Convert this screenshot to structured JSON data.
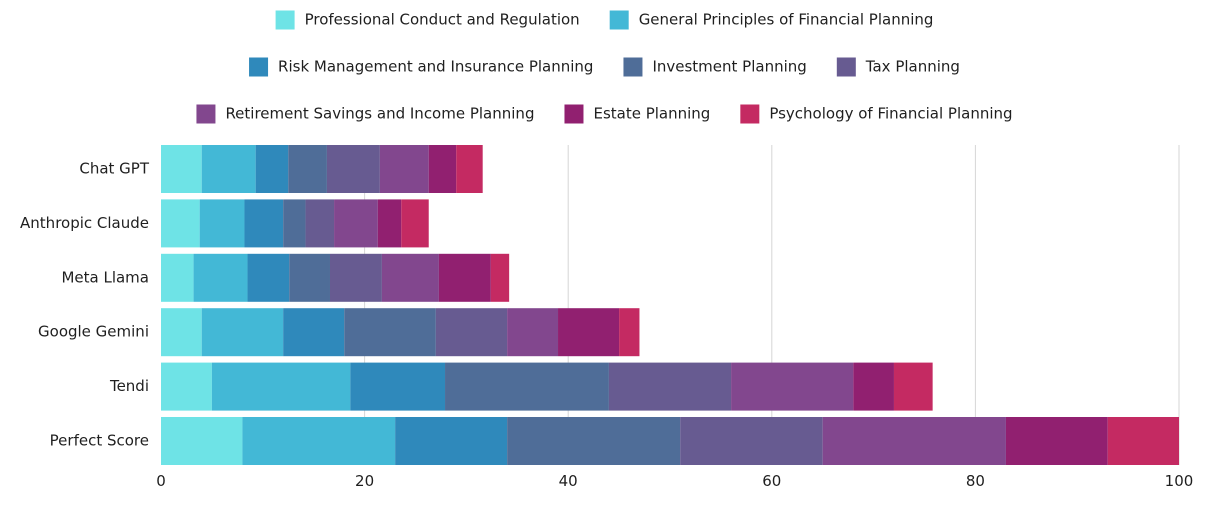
{
  "chart_data": {
    "type": "bar",
    "orientation": "horizontal",
    "stacked": true,
    "title": "",
    "xlabel": "",
    "ylabel": "",
    "xlim": [
      0,
      100
    ],
    "xticks": [
      0,
      20,
      40,
      60,
      80,
      100
    ],
    "grid": true,
    "legend_position": "top",
    "categories": [
      "Chat GPT",
      "Anthropic Claude",
      "Meta Llama",
      "Google Gemini",
      "Tendi",
      "Perfect Score"
    ],
    "series": [
      {
        "name": "Professional Conduct and Regulation",
        "color": "#6ee3e6",
        "values": [
          4,
          3.8,
          3.2,
          4,
          5,
          8
        ]
      },
      {
        "name": "General Principles of Financial Planning",
        "color": "#43b8d6",
        "values": [
          5.3,
          4.4,
          5.3,
          8,
          13.6,
          15
        ]
      },
      {
        "name": "Risk Management and Insurance Planning",
        "color": "#2f89bb",
        "values": [
          3.2,
          3.8,
          4.1,
          6,
          9.3,
          11
        ]
      },
      {
        "name": "Investment Planning",
        "color": "#4f6d98",
        "values": [
          3.8,
          2.2,
          4,
          9,
          16.1,
          17
        ]
      },
      {
        "name": "Tax Planning",
        "color": "#675b91",
        "values": [
          5.2,
          2.8,
          5.1,
          7,
          12,
          14
        ]
      },
      {
        "name": "Retirement Savings and Income Planning",
        "color": "#82478e",
        "values": [
          4.8,
          4.3,
          5.6,
          5,
          12,
          18
        ]
      },
      {
        "name": "Estate Planning",
        "color": "#912070",
        "values": [
          2.7,
          2.3,
          5.1,
          6,
          4,
          10
        ]
      },
      {
        "name": "Psychology of Financial Planning",
        "color": "#c42a62",
        "values": [
          2.6,
          2.7,
          1.8,
          2,
          3.8,
          7
        ]
      }
    ]
  }
}
